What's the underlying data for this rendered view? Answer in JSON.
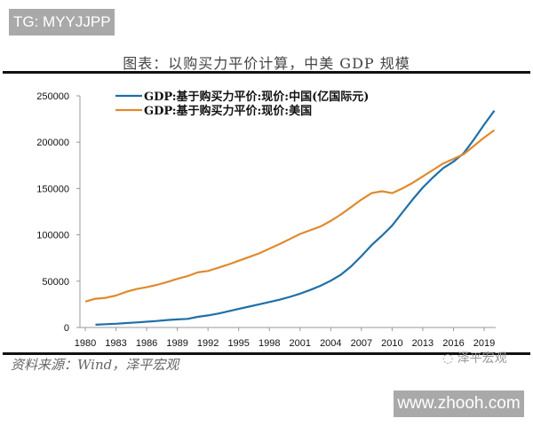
{
  "watermark_top": "TG: MYYJJPP",
  "watermark_bottom": "www.zhooh.com",
  "source": "资料来源：Wind，泽平宏观",
  "brand": "泽平宏观",
  "chart_data": {
    "type": "line",
    "title": "图表：以购买力平价计算，中美 GDP 规模",
    "xlabel": "",
    "ylabel": "",
    "ylim": [
      0,
      250000
    ],
    "yticks": [
      "0",
      "50000",
      "100000",
      "150000",
      "200000",
      "250000"
    ],
    "xticks": [
      "1980",
      "1983",
      "1986",
      "1989",
      "1992",
      "1995",
      "1998",
      "2001",
      "2004",
      "2007",
      "2010",
      "2013",
      "2016",
      "2019"
    ],
    "xlim": [
      1980,
      2021
    ],
    "grid": false,
    "legend_position": "top-left",
    "series": [
      {
        "name": "GDP:基于购买力平价:现价:中国(亿国际元)",
        "color": "#1f6fa8",
        "x": [
          1981,
          1982,
          1983,
          1984,
          1985,
          1986,
          1987,
          1988,
          1989,
          1990,
          1991,
          1992,
          1993,
          1994,
          1995,
          1996,
          1997,
          1998,
          1999,
          2000,
          2001,
          2002,
          2003,
          2004,
          2005,
          2006,
          2007,
          2008,
          2009,
          2010,
          2011,
          2012,
          2013,
          2014,
          2015,
          2016,
          2017,
          2018,
          2019,
          2020
        ],
        "values": [
          3000,
          3500,
          4000,
          4800,
          5500,
          6200,
          7000,
          8000,
          8700,
          9300,
          11500,
          13000,
          15000,
          17500,
          20000,
          22500,
          25000,
          27500,
          30000,
          33000,
          36500,
          40500,
          45000,
          50500,
          57000,
          66000,
          77000,
          89000,
          99000,
          110000,
          124000,
          138000,
          151000,
          162000,
          172000,
          179000,
          188000,
          203000,
          219000,
          234000
        ]
      },
      {
        "name": "GDP:基于购买力平价:现价:美国",
        "color": "#e08a2e",
        "x": [
          1980,
          1981,
          1982,
          1983,
          1984,
          1985,
          1986,
          1987,
          1988,
          1989,
          1990,
          1991,
          1992,
          1993,
          1994,
          1995,
          1996,
          1997,
          1998,
          1999,
          2000,
          2001,
          2002,
          2003,
          2004,
          2005,
          2006,
          2007,
          2008,
          2009,
          2010,
          2011,
          2012,
          2013,
          2014,
          2015,
          2016,
          2017,
          2018,
          2019,
          2020
        ],
        "values": [
          28000,
          31000,
          32000,
          34500,
          38500,
          41500,
          43500,
          46000,
          49000,
          52500,
          55500,
          59500,
          61000,
          64500,
          68000,
          72000,
          76000,
          80000,
          85000,
          90000,
          95500,
          101000,
          105000,
          109000,
          115000,
          122000,
          130000,
          138000,
          145000,
          147000,
          145000,
          150000,
          156000,
          163000,
          170000,
          177000,
          182000,
          187000,
          196000,
          205000,
          213000
        ]
      }
    ]
  }
}
